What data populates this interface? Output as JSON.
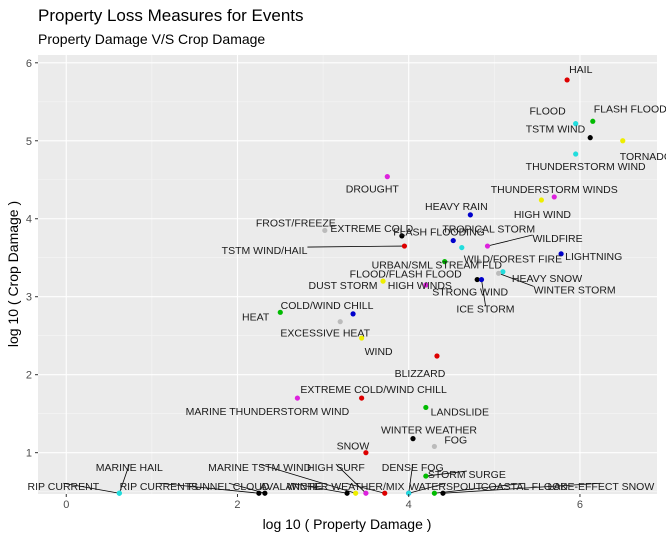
{
  "chart_data": {
    "type": "scatter",
    "title": "Property Loss Measures for Events",
    "subtitle": "Property Damage V/S Crop Damage",
    "xlabel": "log 10 ( Property Damage )",
    "ylabel": "log 10 ( Crop Damage )",
    "xlim": [
      -0.33,
      6.9
    ],
    "ylim": [
      0.47,
      6.1
    ],
    "xticks": [
      0,
      2,
      4,
      6
    ],
    "yticks": [
      1,
      2,
      3,
      4,
      5,
      6
    ],
    "grid": true,
    "legend": "none",
    "points": [
      {
        "label": "HAIL",
        "x": 5.85,
        "y": 5.78,
        "color": "#dd0000"
      },
      {
        "label": "FLASH FLOOD",
        "x": 6.15,
        "y": 5.25,
        "color": "#00bb00"
      },
      {
        "label": "FLOOD",
        "x": 5.95,
        "y": 5.22,
        "color": "#22dddd"
      },
      {
        "label": "TSTM WIND",
        "x": 6.12,
        "y": 5.04,
        "color": "#000000"
      },
      {
        "label": "TORNADO",
        "x": 6.5,
        "y": 5.0,
        "color": "#eeee00"
      },
      {
        "label": "THUNDERSTORM WIND",
        "x": 5.95,
        "y": 4.83,
        "color": "#22dddd"
      },
      {
        "label": "DROUGHT",
        "x": 3.75,
        "y": 4.54,
        "color": "#dd22dd"
      },
      {
        "label": "THUNDERSTORM WINDS",
        "x": 5.7,
        "y": 4.28,
        "color": "#dd22dd"
      },
      {
        "label": "HIGH WIND",
        "x": 5.55,
        "y": 4.24,
        "color": "#eeee00"
      },
      {
        "label": "HEAVY RAIN",
        "x": 4.72,
        "y": 4.05,
        "color": "#0000cc"
      },
      {
        "label": "EXTREME COLD",
        "x": 3.92,
        "y": 3.78,
        "color": "#000000"
      },
      {
        "label": "FROST/FREEZE",
        "x": 3.02,
        "y": 3.85,
        "color": "#bbbbbb"
      },
      {
        "label": "FLASH FLOODING",
        "x": 4.52,
        "y": 3.72,
        "color": "#0000cc"
      },
      {
        "label": "TROPICAL STORM",
        "x": 4.65,
        "y": 3.85,
        "color": "#bbbbbb"
      },
      {
        "label": "WILDFIRE",
        "x": 4.92,
        "y": 3.65,
        "color": "#dd22dd"
      },
      {
        "label": "TSTM WIND/HAIL",
        "x": 3.95,
        "y": 3.65,
        "color": "#dd0000"
      },
      {
        "label": "URBAN/SML STREAM FLD",
        "x": 4.62,
        "y": 3.63,
        "color": "#22dddd"
      },
      {
        "label": "WILD/FOREST FIRE",
        "x": 4.82,
        "y": 3.45,
        "color": "#bbbbbb"
      },
      {
        "label": "LIGHTNING",
        "x": 5.78,
        "y": 3.55,
        "color": "#0000cc"
      },
      {
        "label": "DUST STORM",
        "x": 3.7,
        "y": 3.2,
        "color": "#eeee00"
      },
      {
        "label": "HIGH WINDS",
        "x": 4.2,
        "y": 3.15,
        "color": "#dd22dd"
      },
      {
        "label": "HEAVY SNOW",
        "x": 5.1,
        "y": 3.32,
        "color": "#22dddd"
      },
      {
        "label": "FLOOD/FLASH FLOOD",
        "x": 4.42,
        "y": 3.45,
        "color": "#00bb00"
      },
      {
        "label": "STRONG WIND",
        "x": 4.8,
        "y": 3.22,
        "color": "#000000"
      },
      {
        "label": "WINTER STORM",
        "x": 5.05,
        "y": 3.3,
        "color": "#bbbbbb"
      },
      {
        "label": "ICE STORM",
        "x": 4.85,
        "y": 3.22,
        "color": "#0000cc"
      },
      {
        "label": "HEAT",
        "x": 2.5,
        "y": 2.8,
        "color": "#00bb00"
      },
      {
        "label": "COLD/WIND CHILL",
        "x": 3.35,
        "y": 2.78,
        "color": "#0000cc"
      },
      {
        "label": "EXCESSIVE HEAT",
        "x": 3.2,
        "y": 2.68,
        "color": "#bbbbbb"
      },
      {
        "label": "WIND",
        "x": 3.45,
        "y": 2.47,
        "color": "#eeee00"
      },
      {
        "label": "BLIZZARD",
        "x": 4.33,
        "y": 2.24,
        "color": "#dd0000"
      },
      {
        "label": "EXTREME COLD/WIND CHILL",
        "x": 3.45,
        "y": 1.7,
        "color": "#dd0000"
      },
      {
        "label": "MARINE THUNDERSTORM WIND",
        "x": 2.7,
        "y": 1.7,
        "color": "#dd22dd"
      },
      {
        "label": "LANDSLIDE",
        "x": 4.2,
        "y": 1.58,
        "color": "#00bb00"
      },
      {
        "label": "WINTER WEATHER",
        "x": 4.05,
        "y": 1.18,
        "color": "#000000"
      },
      {
        "label": "SNOW",
        "x": 3.5,
        "y": 1.0,
        "color": "#dd0000"
      },
      {
        "label": "FOG",
        "x": 4.3,
        "y": 1.08,
        "color": "#bbbbbb"
      },
      {
        "label": "MARINE HAIL",
        "x": 0.62,
        "y": 0.48,
        "color": "#22dddd"
      },
      {
        "label": "MARINE TSTM WIND",
        "x": 3.38,
        "y": 0.48,
        "color": "#eeee00"
      },
      {
        "label": "HIGH SURF",
        "x": 3.5,
        "y": 0.48,
        "color": "#dd22dd"
      },
      {
        "label": "DENSE FOG",
        "x": 4.0,
        "y": 0.48,
        "color": "#0000cc"
      },
      {
        "label": "STORM SURGE",
        "x": 4.2,
        "y": 0.7,
        "color": "#00bb00"
      },
      {
        "label": "RIP CURRENT",
        "x": 0.62,
        "y": 0.48,
        "color": "#22dddd"
      },
      {
        "label": "RIP CURRENTS",
        "x": 2.25,
        "y": 0.48,
        "color": "#000000"
      },
      {
        "label": "FUNNEL CLOUD",
        "x": 2.32,
        "y": 0.48,
        "color": "#000000"
      },
      {
        "label": "AVALANCHE",
        "x": 3.28,
        "y": 0.48,
        "color": "#000000"
      },
      {
        "label": "WINTER WEATHER/MIX",
        "x": 3.72,
        "y": 0.48,
        "color": "#dd0000"
      },
      {
        "label": "WATERSPOUT",
        "x": 4.0,
        "y": 0.48,
        "color": "#22dddd"
      },
      {
        "label": "COASTAL FLOOD",
        "x": 4.3,
        "y": 0.48,
        "color": "#00bb00"
      },
      {
        "label": "LAKE-EFFECT SNOW",
        "x": 4.4,
        "y": 0.48,
        "color": "#000000"
      }
    ]
  }
}
